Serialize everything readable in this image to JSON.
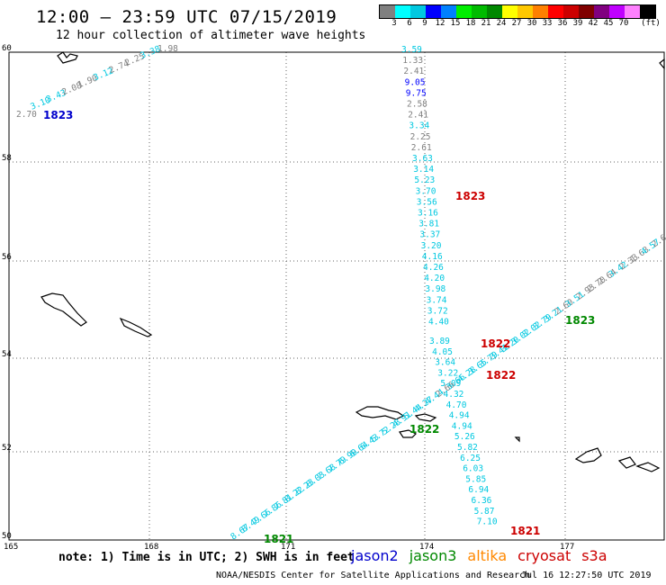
{
  "title": "12:00 – 23:59 UTC 07/15/2019",
  "subtitle": "12 hour collection of altimeter wave heights",
  "legend": {
    "colors": [
      "#808080",
      "#00ffff",
      "#00c8e0",
      "#0000ff",
      "#0080ff",
      "#00ee00",
      "#00bb00",
      "#008800",
      "#ffff00",
      "#ffc800",
      "#ff8000",
      "#ff0000",
      "#cc0000",
      "#800000",
      "#800080",
      "#c000ff",
      "#ff80ff",
      "#000000"
    ],
    "ticks": [
      "3",
      "6",
      "9",
      "12",
      "15",
      "18",
      "21",
      "24",
      "27",
      "30",
      "33",
      "36",
      "39",
      "42",
      "45",
      "70"
    ],
    "unit": "(ft)"
  },
  "axes": {
    "y_labels": [
      "60",
      "58",
      "56",
      "54",
      "52",
      "50"
    ],
    "x_labels": [
      "165",
      "168",
      "171",
      "174",
      "177"
    ]
  },
  "note": "note: 1) Time is in UTC; 2) SWH is in feet",
  "satellites": [
    {
      "name": "jason2",
      "color": "#0000cc"
    },
    {
      "name": "jason3",
      "color": "#008800"
    },
    {
      "name": "altika",
      "color": "#ff8800"
    },
    {
      "name": "cryosat",
      "color": "#cc0000"
    },
    {
      "name": "s3a",
      "color": "#cc0000"
    }
  ],
  "credit": "NOAA/NESDIS Center for Satellite Applications and Research",
  "timestamp": "Jul 16 12:27:50 UTC 2019",
  "track_labels": [
    {
      "text": "1823",
      "color": "#0000cc"
    },
    {
      "text": "1823",
      "color": "#cc0000"
    },
    {
      "text": "1823",
      "color": "#008800"
    },
    {
      "text": "1822",
      "color": "#cc0000"
    },
    {
      "text": "1822",
      "color": "#cc0000"
    },
    {
      "text": "1822",
      "color": "#008800"
    },
    {
      "text": "1821",
      "color": "#008800"
    },
    {
      "text": "1821",
      "color": "#cc0000"
    }
  ],
  "map_data": {
    "tracks": [
      {
        "id": "nw-track",
        "values": [
          {
            "t": "2.70",
            "c": "#808080"
          },
          {
            "t": "3.10",
            "c": "#00c8e0"
          },
          {
            "t": "3.43",
            "c": "#00c8e0"
          },
          {
            "t": "2.08",
            "c": "#808080"
          },
          {
            "t": "1.90",
            "c": "#808080"
          },
          {
            "t": "3.12",
            "c": "#00c8e0"
          },
          {
            "t": "2.74",
            "c": "#808080"
          },
          {
            "t": "2.25",
            "c": "#808080"
          },
          {
            "t": "3.38",
            "c": "#00c8e0"
          },
          {
            "t": "1.98",
            "c": "#808080"
          }
        ]
      },
      {
        "id": "n-s-track",
        "values": [
          {
            "t": "3.59",
            "c": "#00c8e0"
          },
          {
            "t": "1.33",
            "c": "#808080"
          },
          {
            "t": "2.41",
            "c": "#808080"
          },
          {
            "t": "9.05",
            "c": "#0000ff"
          },
          {
            "t": "9.75",
            "c": "#0000ff"
          },
          {
            "t": "2.58",
            "c": "#808080"
          },
          {
            "t": "2.41",
            "c": "#808080"
          },
          {
            "t": "3.34",
            "c": "#00c8e0"
          },
          {
            "t": "2.25",
            "c": "#808080"
          },
          {
            "t": "2.61",
            "c": "#808080"
          },
          {
            "t": "3.63",
            "c": "#00c8e0"
          },
          {
            "t": "3.14",
            "c": "#00c8e0"
          },
          {
            "t": "5.23",
            "c": "#00c8e0"
          },
          {
            "t": "3.70",
            "c": "#00c8e0"
          },
          {
            "t": "3.56",
            "c": "#00c8e0"
          },
          {
            "t": "3.16",
            "c": "#00c8e0"
          },
          {
            "t": "3.81",
            "c": "#00c8e0"
          },
          {
            "t": "3.37",
            "c": "#00c8e0"
          },
          {
            "t": "3.20",
            "c": "#00c8e0"
          },
          {
            "t": "4.16",
            "c": "#00c8e0"
          },
          {
            "t": "4.26",
            "c": "#00c8e0"
          },
          {
            "t": "4.20",
            "c": "#00c8e0"
          },
          {
            "t": "3.98",
            "c": "#00c8e0"
          },
          {
            "t": "3.74",
            "c": "#00c8e0"
          },
          {
            "t": "3.72",
            "c": "#00c8e0"
          },
          {
            "t": "4.40",
            "c": "#00c8e0"
          },
          {
            "t": "3.89",
            "c": "#00c8e0"
          },
          {
            "t": "4.05",
            "c": "#00c8e0"
          },
          {
            "t": "3.64",
            "c": "#00c8e0"
          },
          {
            "t": "3.22",
            "c": "#00c8e0"
          },
          {
            "t": "5.09",
            "c": "#00c8e0"
          },
          {
            "t": "4.32",
            "c": "#00c8e0"
          },
          {
            "t": "4.70",
            "c": "#00c8e0"
          },
          {
            "t": "4.94",
            "c": "#00c8e0"
          },
          {
            "t": "4.94",
            "c": "#00c8e0"
          },
          {
            "t": "5.26",
            "c": "#00c8e0"
          },
          {
            "t": "5.82",
            "c": "#00c8e0"
          },
          {
            "t": "6.25",
            "c": "#00c8e0"
          },
          {
            "t": "6.03",
            "c": "#00c8e0"
          },
          {
            "t": "5.85",
            "c": "#00c8e0"
          },
          {
            "t": "6.94",
            "c": "#00c8e0"
          },
          {
            "t": "6.36",
            "c": "#00c8e0"
          },
          {
            "t": "5.87",
            "c": "#00c8e0"
          },
          {
            "t": "7.10",
            "c": "#00c8e0"
          }
        ]
      },
      {
        "id": "sw-ne-track",
        "values": [
          {
            "t": "8.67",
            "c": "#00c8e0"
          },
          {
            "t": "8.49",
            "c": "#00c8e0"
          },
          {
            "t": "7.66",
            "c": "#00c8e0"
          },
          {
            "t": "7.86",
            "c": "#00c8e0"
          },
          {
            "t": "7.81",
            "c": "#00c8e0"
          },
          {
            "t": "8.22",
            "c": "#00c8e0"
          },
          {
            "t": "8.23",
            "c": "#00c8e0"
          },
          {
            "t": "8.03",
            "c": "#00c8e0"
          },
          {
            "t": "7.68",
            "c": "#00c8e0"
          },
          {
            "t": "7.79",
            "c": "#00c8e0"
          },
          {
            "t": "6.90",
            "c": "#00c8e0"
          },
          {
            "t": "6.64",
            "c": "#00c8e0"
          },
          {
            "t": "6.43",
            "c": "#00c8e0"
          },
          {
            "t": "5.72",
            "c": "#00c8e0"
          },
          {
            "t": "5.28",
            "c": "#00c8e0"
          },
          {
            "t": "4.91",
            "c": "#00c8e0"
          },
          {
            "t": "5.44",
            "c": "#00c8e0"
          },
          {
            "t": "4.27",
            "c": "#00c8e0"
          },
          {
            "t": "4.44",
            "c": "#00c8e0"
          },
          {
            "t": "2.66",
            "c": "#808080"
          },
          {
            "t": "3.66",
            "c": "#00c8e0"
          },
          {
            "t": "4.28",
            "c": "#00c8e0"
          },
          {
            "t": "3.65",
            "c": "#00c8e0"
          },
          {
            "t": "3.79",
            "c": "#00c8e0"
          },
          {
            "t": "3.41",
            "c": "#00c8e0"
          },
          {
            "t": "3.20",
            "c": "#00c8e0"
          },
          {
            "t": "3.02",
            "c": "#00c8e0"
          },
          {
            "t": "3.02",
            "c": "#00c8e0"
          },
          {
            "t": "3.79",
            "c": "#00c8e0"
          },
          {
            "t": "3.21",
            "c": "#00c8e0"
          },
          {
            "t": "2.60",
            "c": "#808080"
          },
          {
            "t": "3.51",
            "c": "#00c8e0"
          },
          {
            "t": "2.93",
            "c": "#808080"
          },
          {
            "t": "2.70",
            "c": "#808080"
          },
          {
            "t": "2.64",
            "c": "#808080"
          },
          {
            "t": "3.42",
            "c": "#00c8e0"
          },
          {
            "t": "2.33",
            "c": "#808080"
          },
          {
            "t": "1.63",
            "c": "#808080"
          },
          {
            "t": "4.57",
            "c": "#00c8e0"
          },
          {
            "t": "2.6",
            "c": "#808080"
          }
        ]
      }
    ]
  }
}
